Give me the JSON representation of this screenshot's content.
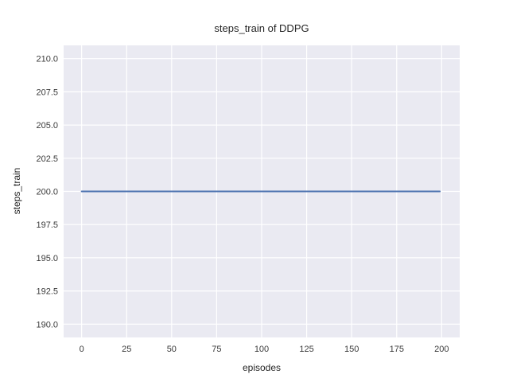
{
  "chart_data": {
    "type": "line",
    "title": "steps_train of DDPG",
    "xlabel": "episodes",
    "ylabel": "steps_train",
    "xlim": [
      -10,
      210
    ],
    "ylim": [
      189,
      211
    ],
    "xticks": [
      {
        "value": 0,
        "label": "0"
      },
      {
        "value": 25,
        "label": "25"
      },
      {
        "value": 50,
        "label": "50"
      },
      {
        "value": 75,
        "label": "75"
      },
      {
        "value": 100,
        "label": "100"
      },
      {
        "value": 125,
        "label": "125"
      },
      {
        "value": 150,
        "label": "150"
      },
      {
        "value": 175,
        "label": "175"
      },
      {
        "value": 200,
        "label": "200"
      }
    ],
    "yticks": [
      {
        "value": 190,
        "label": "190.0"
      },
      {
        "value": 192.5,
        "label": "192.5"
      },
      {
        "value": 195,
        "label": "195.0"
      },
      {
        "value": 197.5,
        "label": "197.5"
      },
      {
        "value": 200,
        "label": "200.0"
      },
      {
        "value": 202.5,
        "label": "202.5"
      },
      {
        "value": 205,
        "label": "205.0"
      },
      {
        "value": 207.5,
        "label": "207.5"
      },
      {
        "value": 210,
        "label": "210.0"
      }
    ],
    "series": [
      {
        "name": "steps_train",
        "color": "#4c72b0",
        "x": [
          0,
          199
        ],
        "y": [
          200,
          200
        ]
      }
    ],
    "grid": true,
    "legend": "none",
    "colors": {
      "axes_background": "#eaeaf2",
      "grid": "#ffffff",
      "figure_background": "#ffffff",
      "text": "#262626"
    }
  }
}
